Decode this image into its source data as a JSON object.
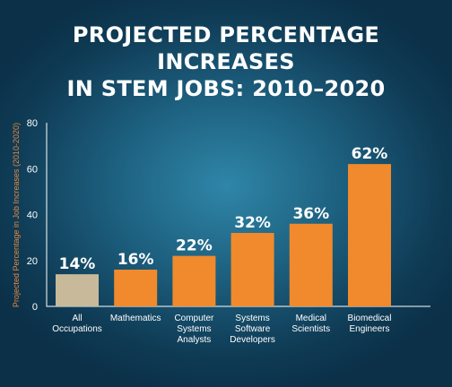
{
  "title_line1": "PROJECTED PERCENTAGE INCREASES",
  "title_line2": "IN STEM JOBS: 2010–2020",
  "chart_data": {
    "type": "bar",
    "title": "PROJECTED PERCENTAGE INCREASES IN STEM JOBS: 2010–2020",
    "xlabel": "",
    "ylabel": "Projected Percentage in Job Increases (2010-2020)",
    "ylim": [
      0,
      80
    ],
    "yticks": [
      0,
      20,
      40,
      60,
      80
    ],
    "grid": false,
    "categories": [
      [
        "All",
        "Occupations"
      ],
      [
        "Mathematics"
      ],
      [
        "Computer",
        "Systems",
        "Analysts"
      ],
      [
        "Systems",
        "Software",
        "Developers"
      ],
      [
        "Medical",
        "Scientists"
      ],
      [
        "Biomedical",
        "Engineers"
      ]
    ],
    "values": [
      14,
      16,
      22,
      32,
      36,
      62
    ],
    "value_labels": [
      "14%",
      "16%",
      "22%",
      "32%",
      "36%",
      "62%"
    ],
    "colors": [
      "#c8b99a",
      "#f08a2c",
      "#f08a2c",
      "#f08a2c",
      "#f08a2c",
      "#f08a2c"
    ]
  }
}
